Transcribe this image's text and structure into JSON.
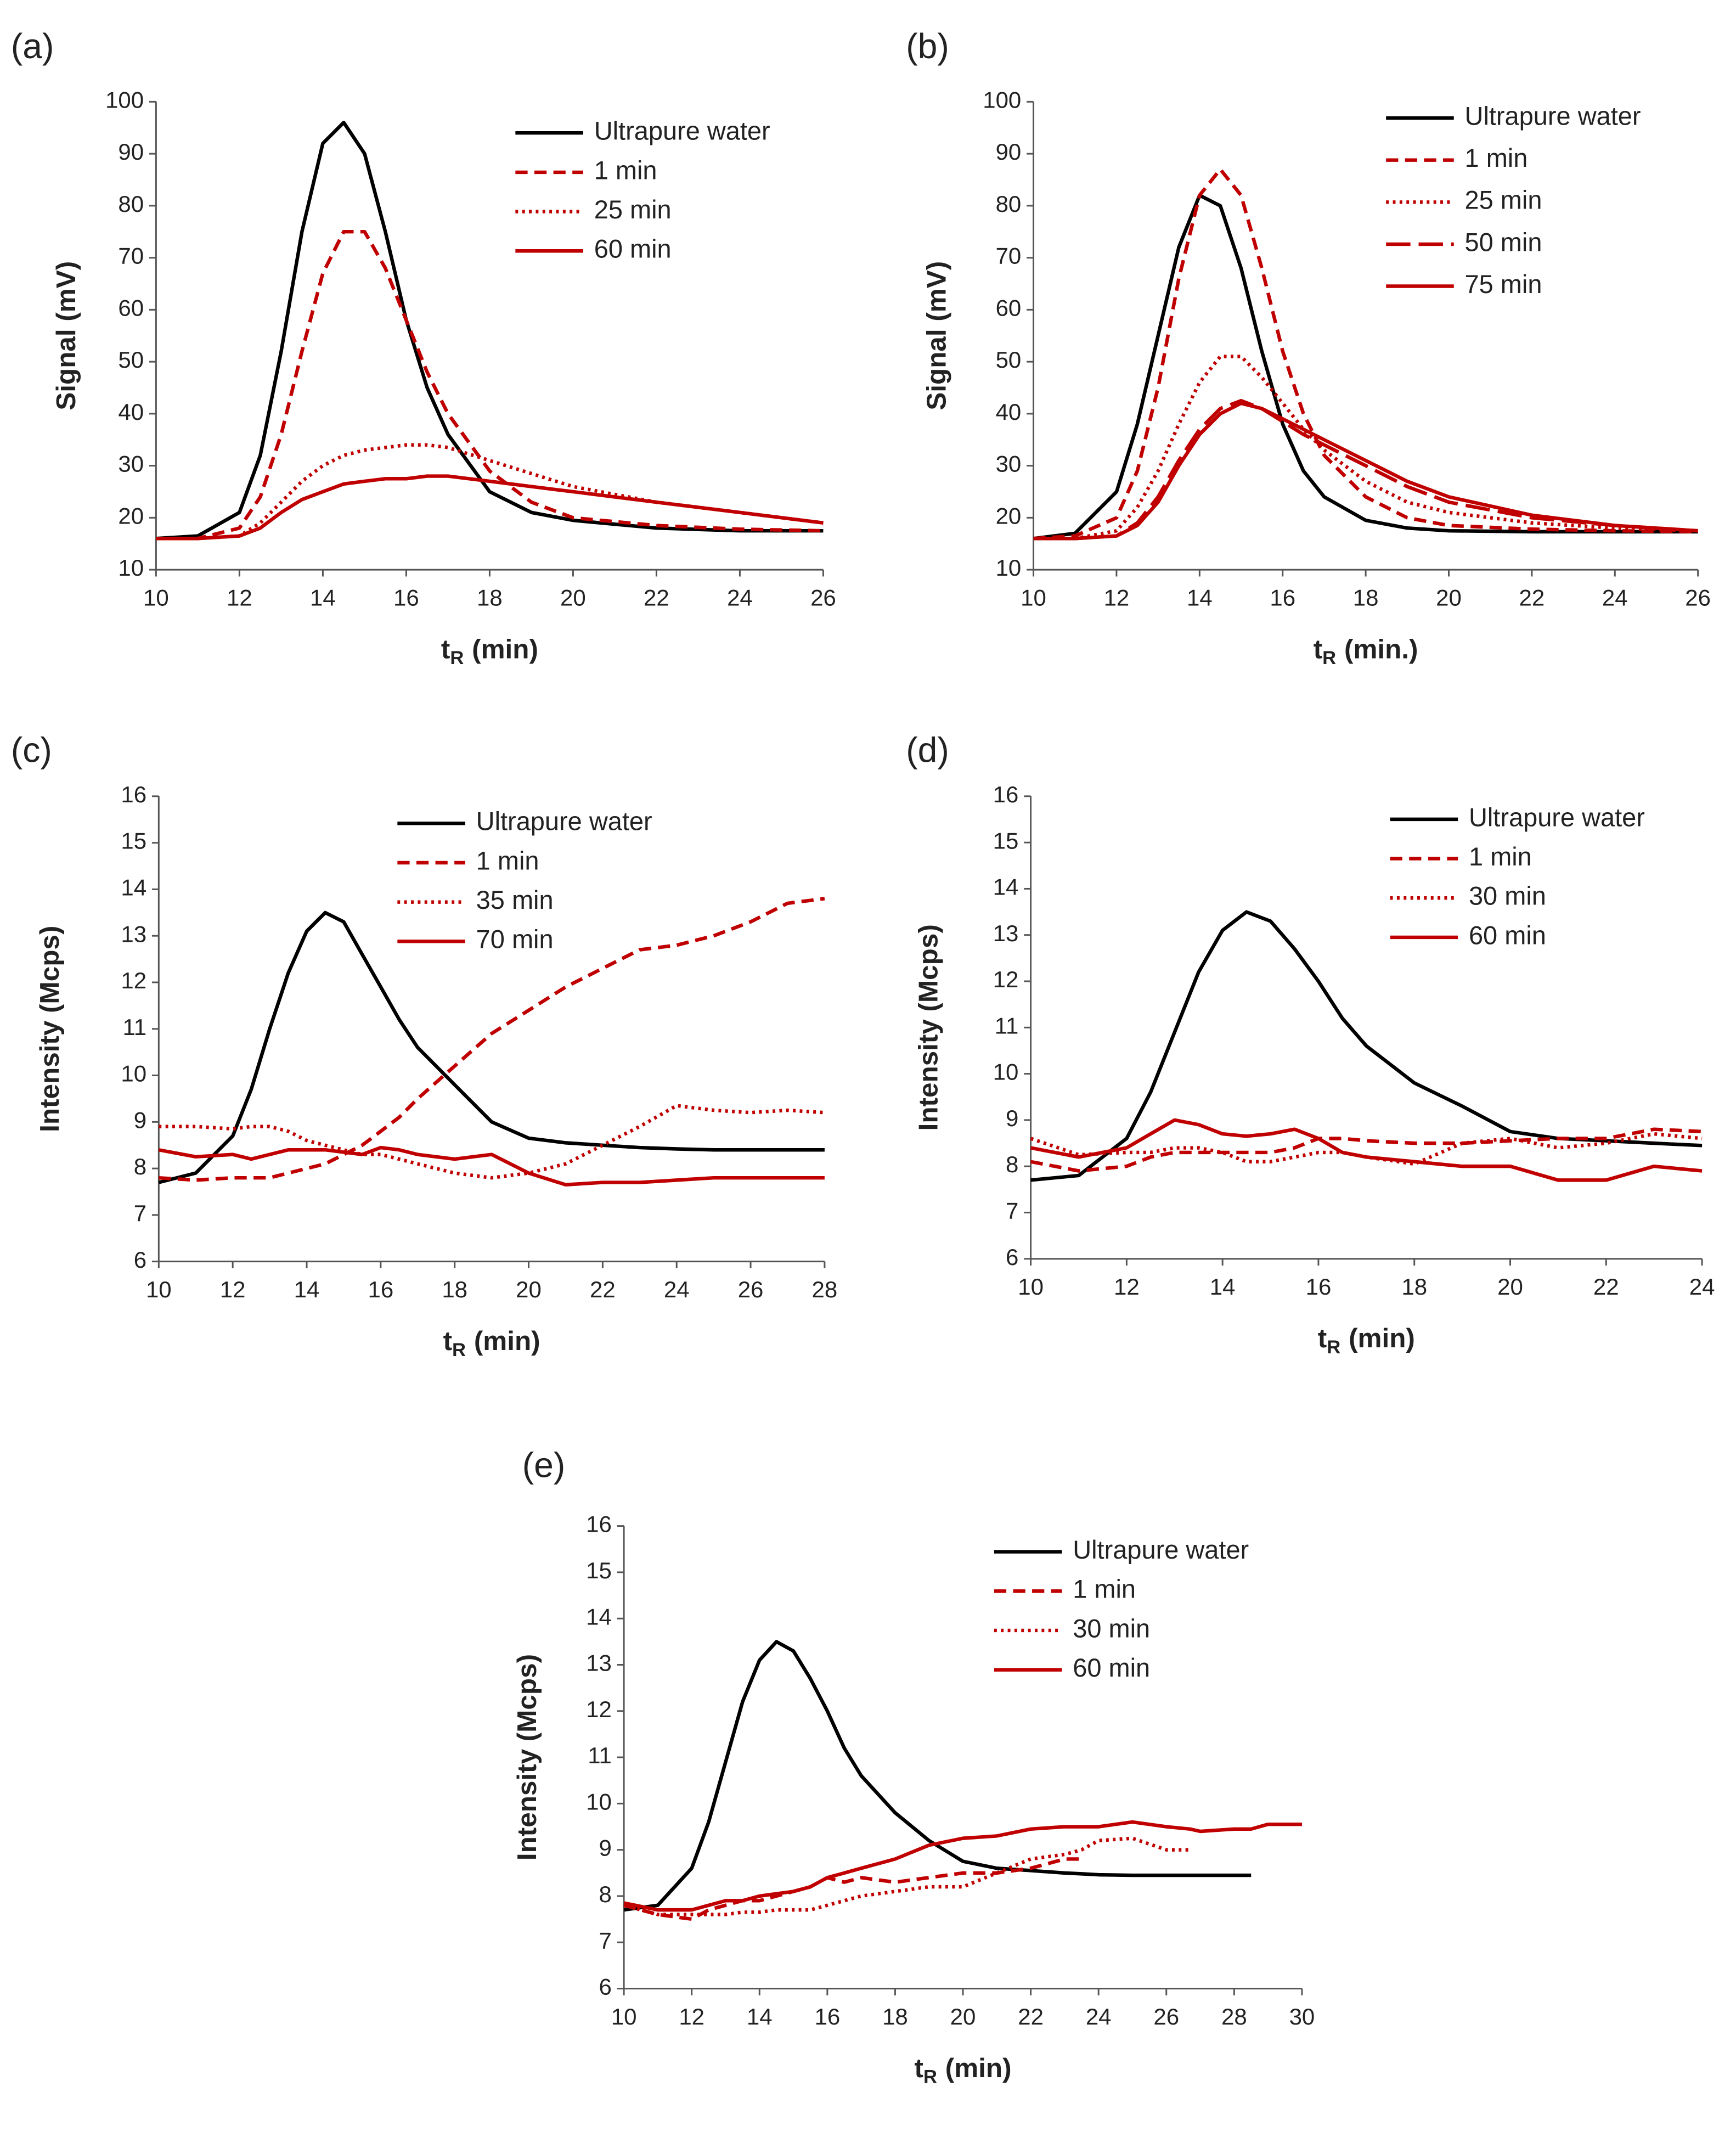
{
  "chart_data": [
    {
      "type": "line",
      "label": "(a)",
      "ylabel": "Signal (mV)",
      "xlabel": "t",
      "xlabel_subscript": "R",
      "xlabel_unit": "(min)",
      "x": [
        10,
        11,
        12,
        12.5,
        13,
        13.5,
        14,
        14.5,
        15,
        15.5,
        16,
        16.5,
        17,
        18,
        19,
        20,
        22,
        24,
        26
      ],
      "xlim": [
        10,
        26
      ],
      "xticks": [
        10,
        12,
        14,
        16,
        18,
        20,
        22,
        24,
        26
      ],
      "ylim": [
        10,
        100
      ],
      "yticks": [
        10,
        20,
        30,
        40,
        50,
        60,
        70,
        80,
        90,
        100
      ],
      "legend": "upper right",
      "series": [
        {
          "name": "Ultrapure water",
          "color": "#000000",
          "dash": "solid",
          "values": [
            16,
            16.5,
            21,
            32,
            52,
            75,
            92,
            96,
            90,
            75,
            58,
            45,
            36,
            25,
            21,
            19.5,
            18,
            17.5,
            17.5
          ]
        },
        {
          "name": "1 min",
          "color": "#c00000",
          "dash": "dashed",
          "values": [
            16,
            16,
            18,
            24,
            36,
            52,
            67,
            75,
            75,
            68,
            58,
            48,
            40,
            29,
            23,
            20,
            18.5,
            17.8,
            17.5
          ]
        },
        {
          "name": "25 min",
          "color": "#c00000",
          "dash": "dotted",
          "values": [
            16,
            16,
            16.5,
            19,
            23,
            27,
            30,
            32,
            33,
            33.5,
            34,
            34,
            33.5,
            31,
            28.5,
            26,
            23,
            21,
            19
          ]
        },
        {
          "name": "60 min",
          "color": "#c00000",
          "dash": "solid",
          "values": [
            16,
            16,
            16.5,
            18,
            21,
            23.5,
            25,
            26.5,
            27,
            27.5,
            27.5,
            28,
            28,
            27,
            26,
            25,
            23,
            21,
            19
          ]
        }
      ]
    },
    {
      "type": "line",
      "label": "(b)",
      "ylabel": "Signal (mV)",
      "xlabel": "t",
      "xlabel_subscript": "R",
      "xlabel_unit": "(min.)",
      "x": [
        10,
        11,
        12,
        12.5,
        13,
        13.5,
        14,
        14.5,
        15,
        15.5,
        16,
        16.5,
        17,
        18,
        19,
        20,
        22,
        24,
        26
      ],
      "xlim": [
        10,
        26
      ],
      "xticks": [
        10,
        12,
        14,
        16,
        18,
        20,
        22,
        24,
        26
      ],
      "ylim": [
        10,
        100
      ],
      "yticks": [
        10,
        20,
        30,
        40,
        50,
        60,
        70,
        80,
        90,
        100
      ],
      "legend": "upper right",
      "series": [
        {
          "name": "Ultrapure water",
          "color": "#000000",
          "dash": "solid",
          "values": [
            16,
            17,
            25,
            38,
            55,
            72,
            82,
            80,
            68,
            52,
            38,
            29,
            24,
            19.5,
            18,
            17.5,
            17.3,
            17.3,
            17.3
          ]
        },
        {
          "name": "1 min",
          "color": "#c00000",
          "dash": "dashed",
          "values": [
            16,
            16.5,
            20,
            29,
            45,
            66,
            82,
            87,
            82,
            68,
            52,
            40,
            32,
            24,
            20,
            18.5,
            17.8,
            17.5,
            17.3
          ]
        },
        {
          "name": "25 min",
          "color": "#c00000",
          "dash": "dotted",
          "values": [
            16,
            16,
            17.5,
            22,
            29,
            38,
            46,
            51,
            51,
            47,
            42,
            37,
            33,
            27,
            23,
            21,
            19,
            18,
            17.5
          ]
        },
        {
          "name": "50 min",
          "color": "#c00000",
          "dash": "longdash",
          "values": [
            16,
            16,
            16.5,
            19,
            24,
            31,
            37,
            41,
            42.5,
            41,
            38.5,
            36,
            34,
            30,
            26,
            23,
            20,
            18.5,
            17.5
          ]
        },
        {
          "name": "75 min",
          "color": "#c00000",
          "dash": "solid",
          "values": [
            16,
            16,
            16.5,
            18.5,
            23,
            30,
            36,
            40,
            42,
            41,
            39,
            37,
            35,
            31,
            27,
            24,
            20.5,
            18.5,
            17.5
          ]
        }
      ]
    },
    {
      "type": "line",
      "label": "(c)",
      "ylabel": "Intensity (Mcps)",
      "xlabel": "t",
      "xlabel_subscript": "R",
      "xlabel_unit": "(min)",
      "x": [
        10,
        11,
        12,
        12.5,
        13,
        13.5,
        14,
        14.5,
        15,
        15.5,
        16,
        16.5,
        17,
        18,
        19,
        20,
        21,
        22,
        23,
        24,
        25,
        26,
        27,
        28
      ],
      "xlim": [
        10,
        28
      ],
      "xticks": [
        10,
        12,
        14,
        16,
        18,
        20,
        22,
        24,
        26,
        28
      ],
      "ylim": [
        6,
        16
      ],
      "yticks": [
        6,
        7,
        8,
        9,
        10,
        11,
        12,
        13,
        14,
        15,
        16
      ],
      "legend": "upper right",
      "series": [
        {
          "name": "Ultrapure water",
          "color": "#000000",
          "dash": "solid",
          "values": [
            7.7,
            7.9,
            8.7,
            9.7,
            11,
            12.2,
            13.1,
            13.5,
            13.3,
            12.6,
            11.9,
            11.2,
            10.6,
            9.8,
            9.0,
            8.65,
            8.55,
            8.5,
            8.45,
            8.42,
            8.4,
            8.4,
            8.4,
            8.4
          ]
        },
        {
          "name": "1 min",
          "color": "#c00000",
          "dash": "dashed",
          "values": [
            7.8,
            7.75,
            7.8,
            7.8,
            7.8,
            7.9,
            8.0,
            8.1,
            8.3,
            8.5,
            8.8,
            9.1,
            9.5,
            10.2,
            10.9,
            11.4,
            11.9,
            12.3,
            12.7,
            12.8,
            13.0,
            13.3,
            13.7,
            13.8
          ]
        },
        {
          "name": "35 min",
          "color": "#c00000",
          "dash": "dotted",
          "values": [
            8.9,
            8.9,
            8.85,
            8.9,
            8.9,
            8.8,
            8.6,
            8.5,
            8.4,
            8.3,
            8.3,
            8.2,
            8.1,
            7.9,
            7.8,
            7.9,
            8.1,
            8.5,
            8.9,
            9.35,
            9.25,
            9.2,
            9.25,
            9.2
          ]
        },
        {
          "name": "70 min",
          "color": "#c00000",
          "dash": "solid",
          "values": [
            8.4,
            8.25,
            8.3,
            8.2,
            8.3,
            8.4,
            8.4,
            8.4,
            8.35,
            8.3,
            8.45,
            8.4,
            8.3,
            8.2,
            8.3,
            7.9,
            7.65,
            7.7,
            7.7,
            7.75,
            7.8,
            7.8,
            7.8,
            7.8
          ]
        }
      ]
    },
    {
      "type": "line",
      "label": "(d)",
      "ylabel": "Intensity (Mcps)",
      "xlabel": "t",
      "xlabel_subscript": "R",
      "xlabel_unit": "(min)",
      "x": [
        10,
        11,
        12,
        12.5,
        13,
        13.5,
        14,
        14.5,
        15,
        15.5,
        16,
        16.5,
        17,
        18,
        19,
        20,
        21,
        22,
        23,
        24
      ],
      "xlim": [
        10,
        24
      ],
      "xticks": [
        10,
        12,
        14,
        16,
        18,
        20,
        22,
        24
      ],
      "ylim": [
        6,
        16
      ],
      "yticks": [
        6,
        7,
        8,
        9,
        10,
        11,
        12,
        13,
        14,
        15,
        16
      ],
      "legend": "upper right",
      "series": [
        {
          "name": "Ultrapure water",
          "color": "#000000",
          "dash": "solid",
          "values": [
            7.7,
            7.8,
            8.6,
            9.6,
            10.9,
            12.2,
            13.1,
            13.5,
            13.3,
            12.7,
            12.0,
            11.2,
            10.6,
            9.8,
            9.3,
            8.75,
            8.6,
            8.55,
            8.5,
            8.45
          ]
        },
        {
          "name": "1 min",
          "color": "#c00000",
          "dash": "dashed",
          "values": [
            8.1,
            7.9,
            8.0,
            8.2,
            8.3,
            8.3,
            8.3,
            8.3,
            8.3,
            8.4,
            8.6,
            8.6,
            8.55,
            8.5,
            8.5,
            8.55,
            8.6,
            8.6,
            8.8,
            8.75
          ]
        },
        {
          "name": "30 min",
          "color": "#c00000",
          "dash": "dotted",
          "values": [
            8.6,
            8.25,
            8.3,
            8.3,
            8.4,
            8.4,
            8.3,
            8.1,
            8.1,
            8.2,
            8.3,
            8.3,
            8.2,
            8.05,
            8.5,
            8.6,
            8.4,
            8.5,
            8.7,
            8.6
          ]
        },
        {
          "name": "60 min",
          "color": "#c00000",
          "dash": "solid",
          "values": [
            8.4,
            8.2,
            8.4,
            8.7,
            9.0,
            8.9,
            8.7,
            8.65,
            8.7,
            8.8,
            8.6,
            8.3,
            8.2,
            8.1,
            8.0,
            8.0,
            7.7,
            7.7,
            8.0,
            7.9
          ]
        }
      ]
    },
    {
      "type": "line",
      "label": "(e)",
      "ylabel": "Intensity (Mcps)",
      "xlabel": "t",
      "xlabel_subscript": "R",
      "xlabel_unit": "(min)",
      "x": [
        10,
        11,
        12,
        12.5,
        13,
        13.5,
        14,
        14.5,
        15,
        15.5,
        16,
        16.5,
        17,
        18,
        19,
        20,
        21,
        22,
        23,
        23.5,
        24,
        25,
        26,
        26.7,
        27,
        28,
        28.5,
        29,
        30
      ],
      "xlim": [
        10,
        30
      ],
      "xticks": [
        10,
        12,
        14,
        16,
        18,
        20,
        22,
        24,
        26,
        28,
        30
      ],
      "ylim": [
        6,
        16
      ],
      "yticks": [
        6,
        7,
        8,
        9,
        10,
        11,
        12,
        13,
        14,
        15,
        16
      ],
      "legend": "upper right",
      "series": [
        {
          "name": "Ultrapure water",
          "color": "#000000",
          "dash": "solid",
          "values": [
            7.7,
            7.8,
            8.6,
            9.6,
            10.9,
            12.2,
            13.1,
            13.5,
            13.3,
            12.7,
            12.0,
            11.2,
            10.6,
            9.8,
            9.2,
            8.75,
            8.6,
            8.55,
            8.5,
            8.48,
            8.46,
            8.45,
            8.45,
            8.45,
            8.45,
            8.45,
            8.45,
            null,
            null
          ]
        },
        {
          "name": "1 min",
          "color": "#c00000",
          "dash": "dashed",
          "values": [
            7.8,
            7.6,
            7.5,
            7.7,
            7.8,
            7.9,
            7.9,
            8.0,
            8.1,
            8.2,
            8.4,
            8.3,
            8.4,
            8.3,
            8.4,
            8.5,
            8.5,
            8.6,
            8.8,
            8.8,
            null,
            null,
            null,
            null,
            null,
            null,
            null,
            null,
            null
          ]
        },
        {
          "name": "30 min",
          "color": "#c00000",
          "dash": "dotted",
          "values": [
            7.8,
            7.6,
            7.6,
            7.6,
            7.6,
            7.65,
            7.65,
            7.7,
            7.7,
            7.7,
            7.8,
            7.9,
            8.0,
            8.1,
            8.2,
            8.2,
            8.5,
            8.8,
            8.9,
            9.0,
            9.2,
            9.25,
            9.0,
            9.0,
            null,
            null,
            null,
            null,
            null
          ]
        },
        {
          "name": "60 min",
          "color": "#c00000",
          "dash": "solid",
          "values": [
            7.85,
            7.7,
            7.7,
            7.8,
            7.9,
            7.9,
            8.0,
            8.05,
            8.1,
            8.2,
            8.4,
            8.5,
            8.6,
            8.8,
            9.1,
            9.25,
            9.3,
            9.45,
            9.5,
            9.5,
            9.5,
            9.6,
            9.5,
            9.45,
            9.4,
            9.45,
            9.45,
            9.55,
            9.55
          ]
        }
      ]
    }
  ]
}
